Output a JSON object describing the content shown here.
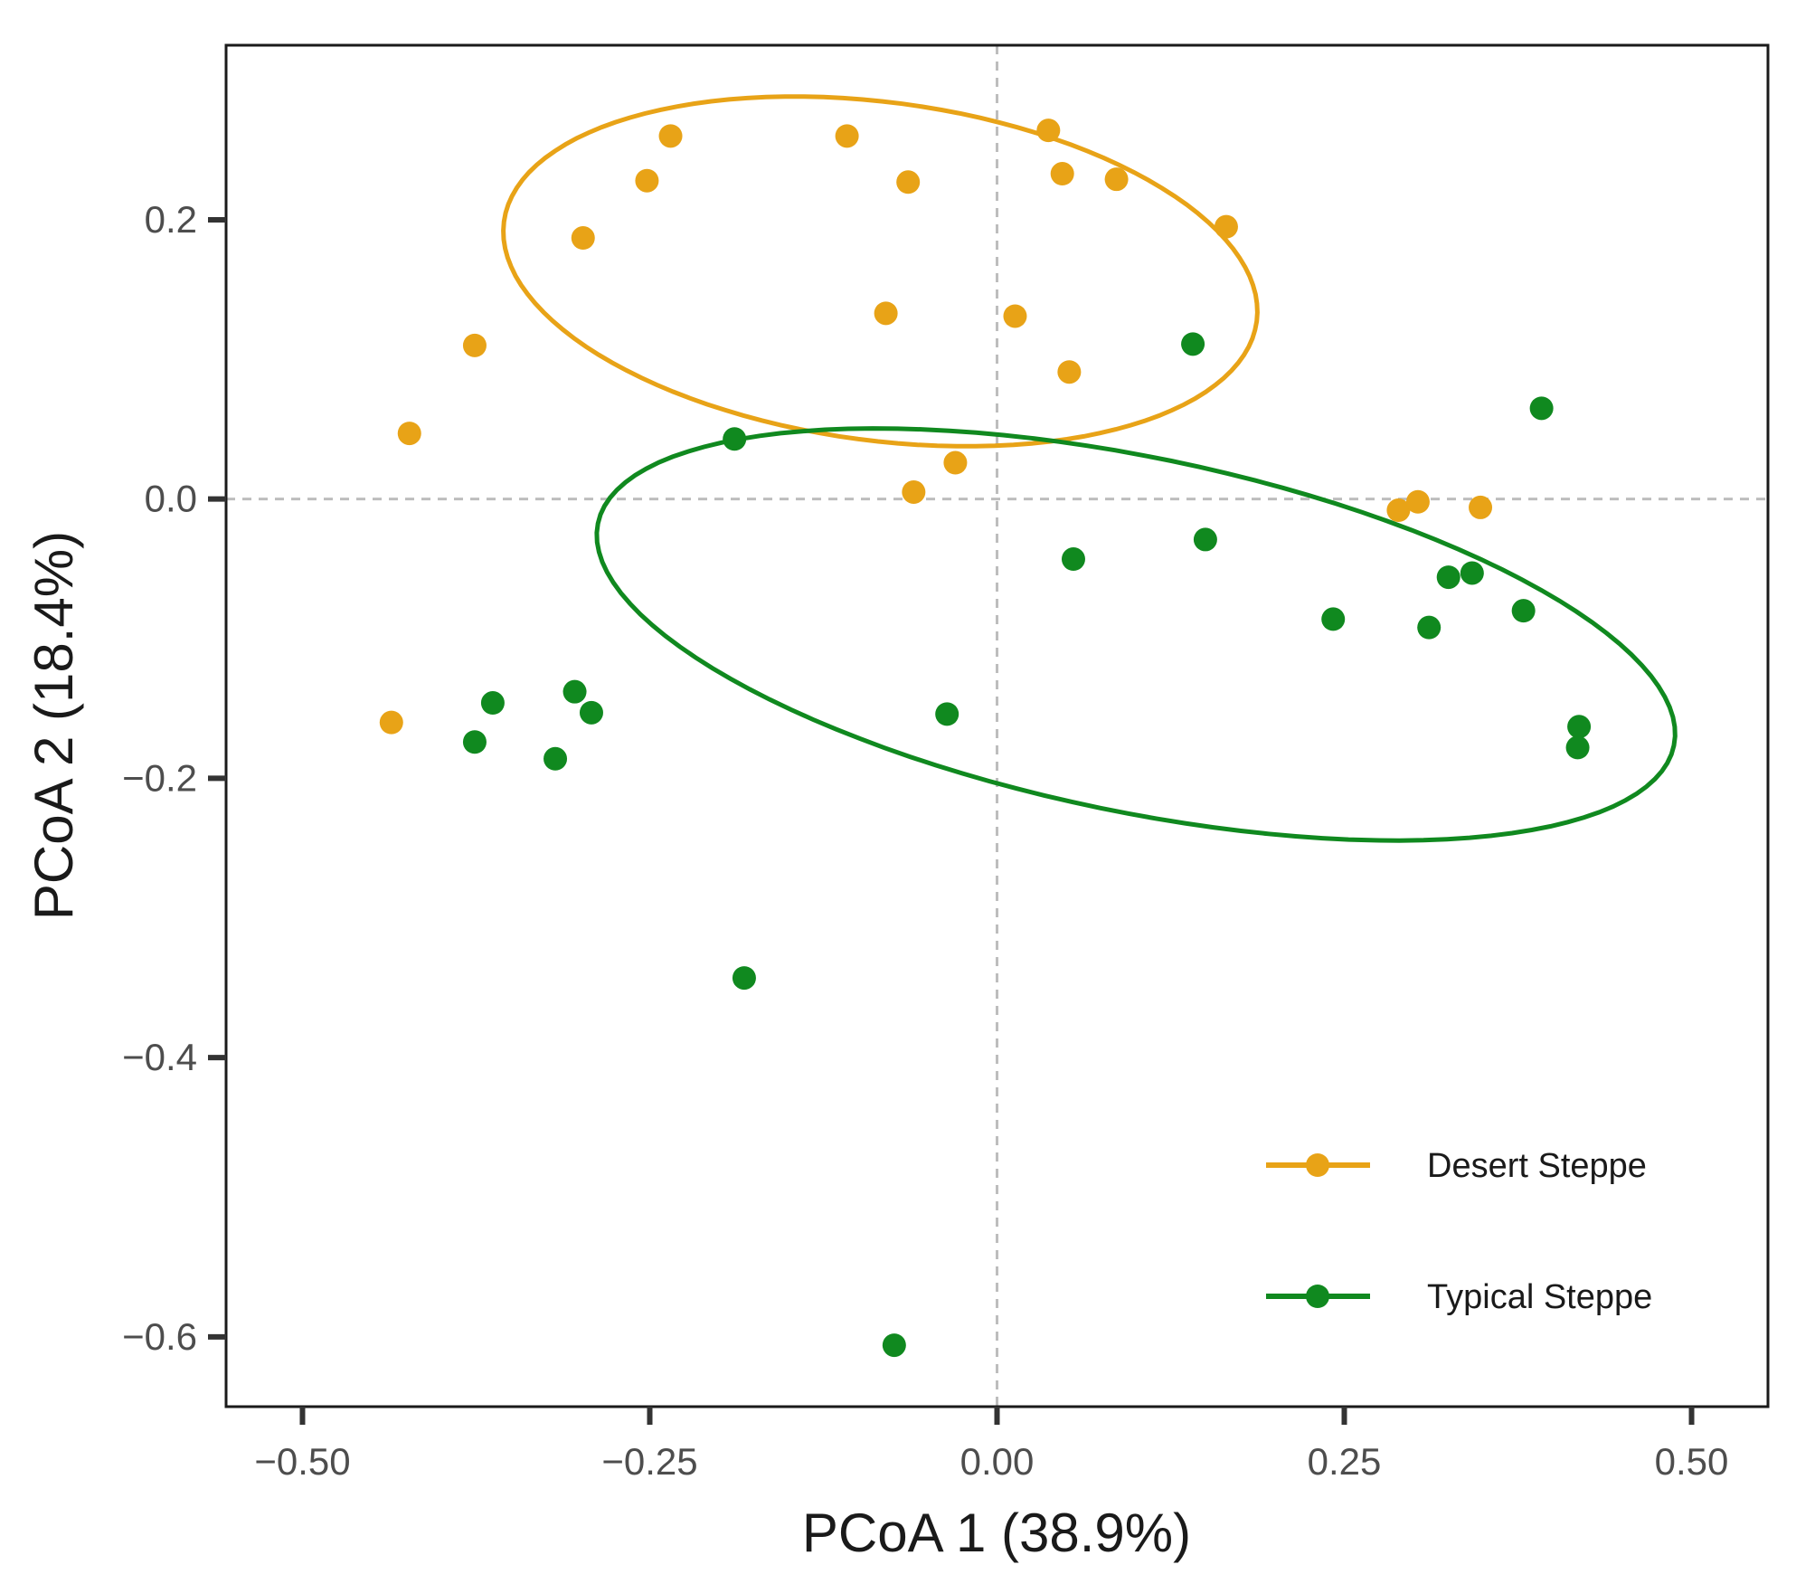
{
  "chart_data": {
    "type": "scatter",
    "xlabel": "PCoA 1 (38.9%)",
    "ylabel": "PCoA 2 (18.4%)",
    "xlim": [
      -0.555,
      0.555
    ],
    "ylim": [
      -0.65,
      0.325
    ],
    "xticks": [
      -0.5,
      -0.25,
      0.0,
      0.25,
      0.5
    ],
    "xtick_labels": [
      "−0.50",
      "−0.25",
      "0.00",
      "0.25",
      "0.50"
    ],
    "yticks": [
      0.2,
      0.0,
      -0.2,
      -0.4,
      -0.6
    ],
    "ytick_labels": [
      "0.2",
      "0.0",
      "−0.2",
      "−0.4",
      "−0.6"
    ],
    "grid": false,
    "reference_lines": {
      "x": 0.0,
      "y": 0.0,
      "style": "dashed"
    },
    "legend_position": "bottom-right",
    "series": [
      {
        "name": "Desert Steppe",
        "color": "#E8A317",
        "points": [
          {
            "x": -0.235,
            "y": 0.26
          },
          {
            "x": -0.108,
            "y": 0.26
          },
          {
            "x": 0.037,
            "y": 0.264
          },
          {
            "x": -0.252,
            "y": 0.228
          },
          {
            "x": -0.064,
            "y": 0.227
          },
          {
            "x": 0.047,
            "y": 0.233
          },
          {
            "x": 0.086,
            "y": 0.229
          },
          {
            "x": -0.298,
            "y": 0.187
          },
          {
            "x": 0.165,
            "y": 0.195
          },
          {
            "x": -0.08,
            "y": 0.133
          },
          {
            "x": 0.013,
            "y": 0.131
          },
          {
            "x": 0.052,
            "y": 0.091
          },
          {
            "x": -0.376,
            "y": 0.11
          },
          {
            "x": -0.423,
            "y": 0.047
          },
          {
            "x": -0.03,
            "y": 0.026
          },
          {
            "x": -0.06,
            "y": 0.005
          },
          {
            "x": 0.289,
            "y": -0.008
          },
          {
            "x": 0.303,
            "y": -0.002
          },
          {
            "x": 0.348,
            "y": -0.006
          },
          {
            "x": -0.436,
            "y": -0.16
          }
        ],
        "ellipse": {
          "cx": -0.084,
          "cy": 0.163,
          "rx": 0.2733,
          "ry": 0.1211,
          "rotation_deg": -7.5
        }
      },
      {
        "name": "Typical Steppe",
        "color": "#10891F",
        "points": [
          {
            "x": 0.141,
            "y": 0.111
          },
          {
            "x": -0.189,
            "y": 0.043
          },
          {
            "x": 0.392,
            "y": 0.065
          },
          {
            "x": 0.15,
            "y": -0.029
          },
          {
            "x": 0.055,
            "y": -0.043
          },
          {
            "x": 0.325,
            "y": -0.056
          },
          {
            "x": 0.342,
            "y": -0.053
          },
          {
            "x": 0.242,
            "y": -0.086
          },
          {
            "x": 0.311,
            "y": -0.092
          },
          {
            "x": 0.379,
            "y": -0.08
          },
          {
            "x": -0.304,
            "y": -0.138
          },
          {
            "x": -0.292,
            "y": -0.153
          },
          {
            "x": -0.363,
            "y": -0.146
          },
          {
            "x": -0.376,
            "y": -0.174
          },
          {
            "x": -0.318,
            "y": -0.186
          },
          {
            "x": -0.036,
            "y": -0.154
          },
          {
            "x": 0.419,
            "y": -0.163
          },
          {
            "x": 0.418,
            "y": -0.178
          },
          {
            "x": -0.182,
            "y": -0.343
          },
          {
            "x": -0.074,
            "y": -0.606
          }
        ],
        "ellipse": {
          "cx": 0.1,
          "cy": -0.097,
          "rx": 0.3954,
          "ry": 0.1269,
          "rotation_deg": -11.6
        }
      }
    ]
  }
}
